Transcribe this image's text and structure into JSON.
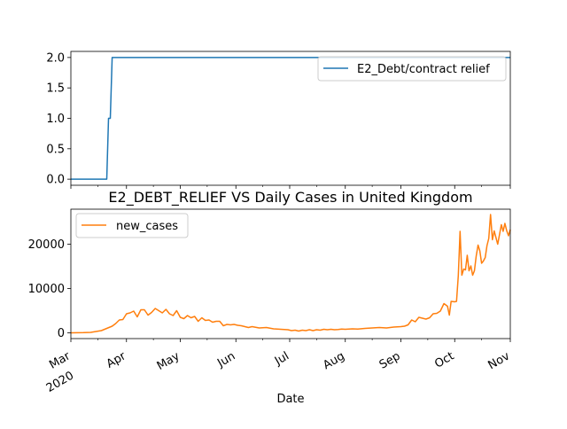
{
  "chart_data": [
    {
      "type": "line",
      "title": "",
      "xlabel": "",
      "ylabel": "",
      "ylim": [
        -0.1,
        2.1
      ],
      "yticks": [
        "0.0",
        "0.5",
        "1.0",
        "1.5",
        "2.0"
      ],
      "legend": "top-right",
      "series": [
        {
          "name": "E2_Debt/contract relief",
          "color": "#1f77b4",
          "points": [
            [
              "2020-03-01",
              0
            ],
            [
              "2020-03-21",
              0
            ],
            [
              "2020-03-22",
              1
            ],
            [
              "2020-03-23",
              1
            ],
            [
              "2020-03-24",
              2
            ],
            [
              "2020-11-01",
              2
            ]
          ]
        }
      ]
    },
    {
      "type": "line",
      "title": "E2_DEBT_RELIEF VS Daily Cases in United Kingdom",
      "xlabel": "Date",
      "ylabel": "",
      "ylim": [
        -1300,
        27900
      ],
      "yticks": [
        "0",
        "10000",
        "20000"
      ],
      "legend": "top-left",
      "xticks": [
        {
          "date": "2020-03-01",
          "label": "Mar",
          "sub": "2020"
        },
        {
          "date": "2020-04-01",
          "label": "Apr"
        },
        {
          "date": "2020-05-01",
          "label": "May"
        },
        {
          "date": "2020-06-01",
          "label": "Jun"
        },
        {
          "date": "2020-07-01",
          "label": "Jul"
        },
        {
          "date": "2020-08-01",
          "label": "Aug"
        },
        {
          "date": "2020-09-01",
          "label": "Sep"
        },
        {
          "date": "2020-10-01",
          "label": "Oct"
        },
        {
          "date": "2020-11-01",
          "label": "Nov"
        }
      ],
      "series": [
        {
          "name": "new_cases",
          "color": "#ff7f0e",
          "points": [
            [
              "2020-03-01",
              0
            ],
            [
              "2020-03-08",
              40
            ],
            [
              "2020-03-12",
              100
            ],
            [
              "2020-03-15",
              300
            ],
            [
              "2020-03-18",
              500
            ],
            [
              "2020-03-21",
              1000
            ],
            [
              "2020-03-24",
              1500
            ],
            [
              "2020-03-26",
              2100
            ],
            [
              "2020-03-28",
              2900
            ],
            [
              "2020-03-30",
              3000
            ],
            [
              "2020-04-01",
              4300
            ],
            [
              "2020-04-03",
              4500
            ],
            [
              "2020-04-05",
              4900
            ],
            [
              "2020-04-07",
              3600
            ],
            [
              "2020-04-09",
              5200
            ],
            [
              "2020-04-11",
              5200
            ],
            [
              "2020-04-13",
              4000
            ],
            [
              "2020-04-15",
              4600
            ],
            [
              "2020-04-17",
              5500
            ],
            [
              "2020-04-19",
              5000
            ],
            [
              "2020-04-21",
              4500
            ],
            [
              "2020-04-23",
              5300
            ],
            [
              "2020-04-25",
              4300
            ],
            [
              "2020-04-27",
              3900
            ],
            [
              "2020-04-29",
              5000
            ],
            [
              "2020-05-01",
              3500
            ],
            [
              "2020-05-03",
              3200
            ],
            [
              "2020-05-05",
              3900
            ],
            [
              "2020-05-07",
              3400
            ],
            [
              "2020-05-09",
              3700
            ],
            [
              "2020-05-11",
              2600
            ],
            [
              "2020-05-13",
              3400
            ],
            [
              "2020-05-15",
              2800
            ],
            [
              "2020-05-17",
              2900
            ],
            [
              "2020-05-19",
              2400
            ],
            [
              "2020-05-21",
              2600
            ],
            [
              "2020-05-23",
              2600
            ],
            [
              "2020-05-25",
              1600
            ],
            [
              "2020-05-27",
              1900
            ],
            [
              "2020-05-29",
              1800
            ],
            [
              "2020-05-31",
              1900
            ],
            [
              "2020-06-02",
              1700
            ],
            [
              "2020-06-04",
              1600
            ],
            [
              "2020-06-06",
              1400
            ],
            [
              "2020-06-08",
              1200
            ],
            [
              "2020-06-10",
              1400
            ],
            [
              "2020-06-14",
              1100
            ],
            [
              "2020-06-18",
              1200
            ],
            [
              "2020-06-22",
              900
            ],
            [
              "2020-06-26",
              800
            ],
            [
              "2020-06-30",
              700
            ],
            [
              "2020-07-02",
              500
            ],
            [
              "2020-07-04",
              600
            ],
            [
              "2020-07-06",
              400
            ],
            [
              "2020-07-08",
              600
            ],
            [
              "2020-07-10",
              500
            ],
            [
              "2020-07-12",
              700
            ],
            [
              "2020-07-14",
              500
            ],
            [
              "2020-07-16",
              700
            ],
            [
              "2020-07-18",
              600
            ],
            [
              "2020-07-20",
              800
            ],
            [
              "2020-07-22",
              700
            ],
            [
              "2020-07-24",
              800
            ],
            [
              "2020-07-26",
              700
            ],
            [
              "2020-07-28",
              750
            ],
            [
              "2020-07-30",
              850
            ],
            [
              "2020-08-01",
              800
            ],
            [
              "2020-08-05",
              900
            ],
            [
              "2020-08-08",
              850
            ],
            [
              "2020-08-12",
              1000
            ],
            [
              "2020-08-16",
              1100
            ],
            [
              "2020-08-20",
              1200
            ],
            [
              "2020-08-24",
              1100
            ],
            [
              "2020-08-28",
              1300
            ],
            [
              "2020-09-01",
              1400
            ],
            [
              "2020-09-03",
              1500
            ],
            [
              "2020-09-05",
              1800
            ],
            [
              "2020-09-07",
              2900
            ],
            [
              "2020-09-09",
              2500
            ],
            [
              "2020-09-11",
              3500
            ],
            [
              "2020-09-13",
              3300
            ],
            [
              "2020-09-15",
              3100
            ],
            [
              "2020-09-17",
              3400
            ],
            [
              "2020-09-19",
              4300
            ],
            [
              "2020-09-21",
              4400
            ],
            [
              "2020-09-23",
              4900
            ],
            [
              "2020-09-25",
              6600
            ],
            [
              "2020-09-27",
              6000
            ],
            [
              "2020-09-28",
              4000
            ],
            [
              "2020-09-29",
              7100
            ],
            [
              "2020-10-01",
              7000
            ],
            [
              "2020-10-02",
              7100
            ],
            [
              "2020-10-03",
              12900
            ],
            [
              "2020-10-04",
              22900
            ],
            [
              "2020-10-05",
              13000
            ],
            [
              "2020-10-06",
              14400
            ],
            [
              "2020-10-07",
              14200
            ],
            [
              "2020-10-08",
              17500
            ],
            [
              "2020-10-09",
              14000
            ],
            [
              "2020-10-10",
              15100
            ],
            [
              "2020-10-11",
              13000
            ],
            [
              "2020-10-12",
              14000
            ],
            [
              "2020-10-13",
              17300
            ],
            [
              "2020-10-14",
              19800
            ],
            [
              "2020-10-15",
              18500
            ],
            [
              "2020-10-16",
              15700
            ],
            [
              "2020-10-17",
              16200
            ],
            [
              "2020-10-18",
              17000
            ],
            [
              "2020-10-19",
              19700
            ],
            [
              "2020-10-20",
              21300
            ],
            [
              "2020-10-21",
              26700
            ],
            [
              "2020-10-22",
              21000
            ],
            [
              "2020-10-23",
              23000
            ],
            [
              "2020-10-25",
              20000
            ],
            [
              "2020-10-27",
              24400
            ],
            [
              "2020-10-28",
              22900
            ],
            [
              "2020-10-29",
              24700
            ],
            [
              "2020-10-30",
              23000
            ],
            [
              "2020-10-31",
              21900
            ],
            [
              "2020-11-01",
              23300
            ]
          ]
        }
      ]
    }
  ]
}
